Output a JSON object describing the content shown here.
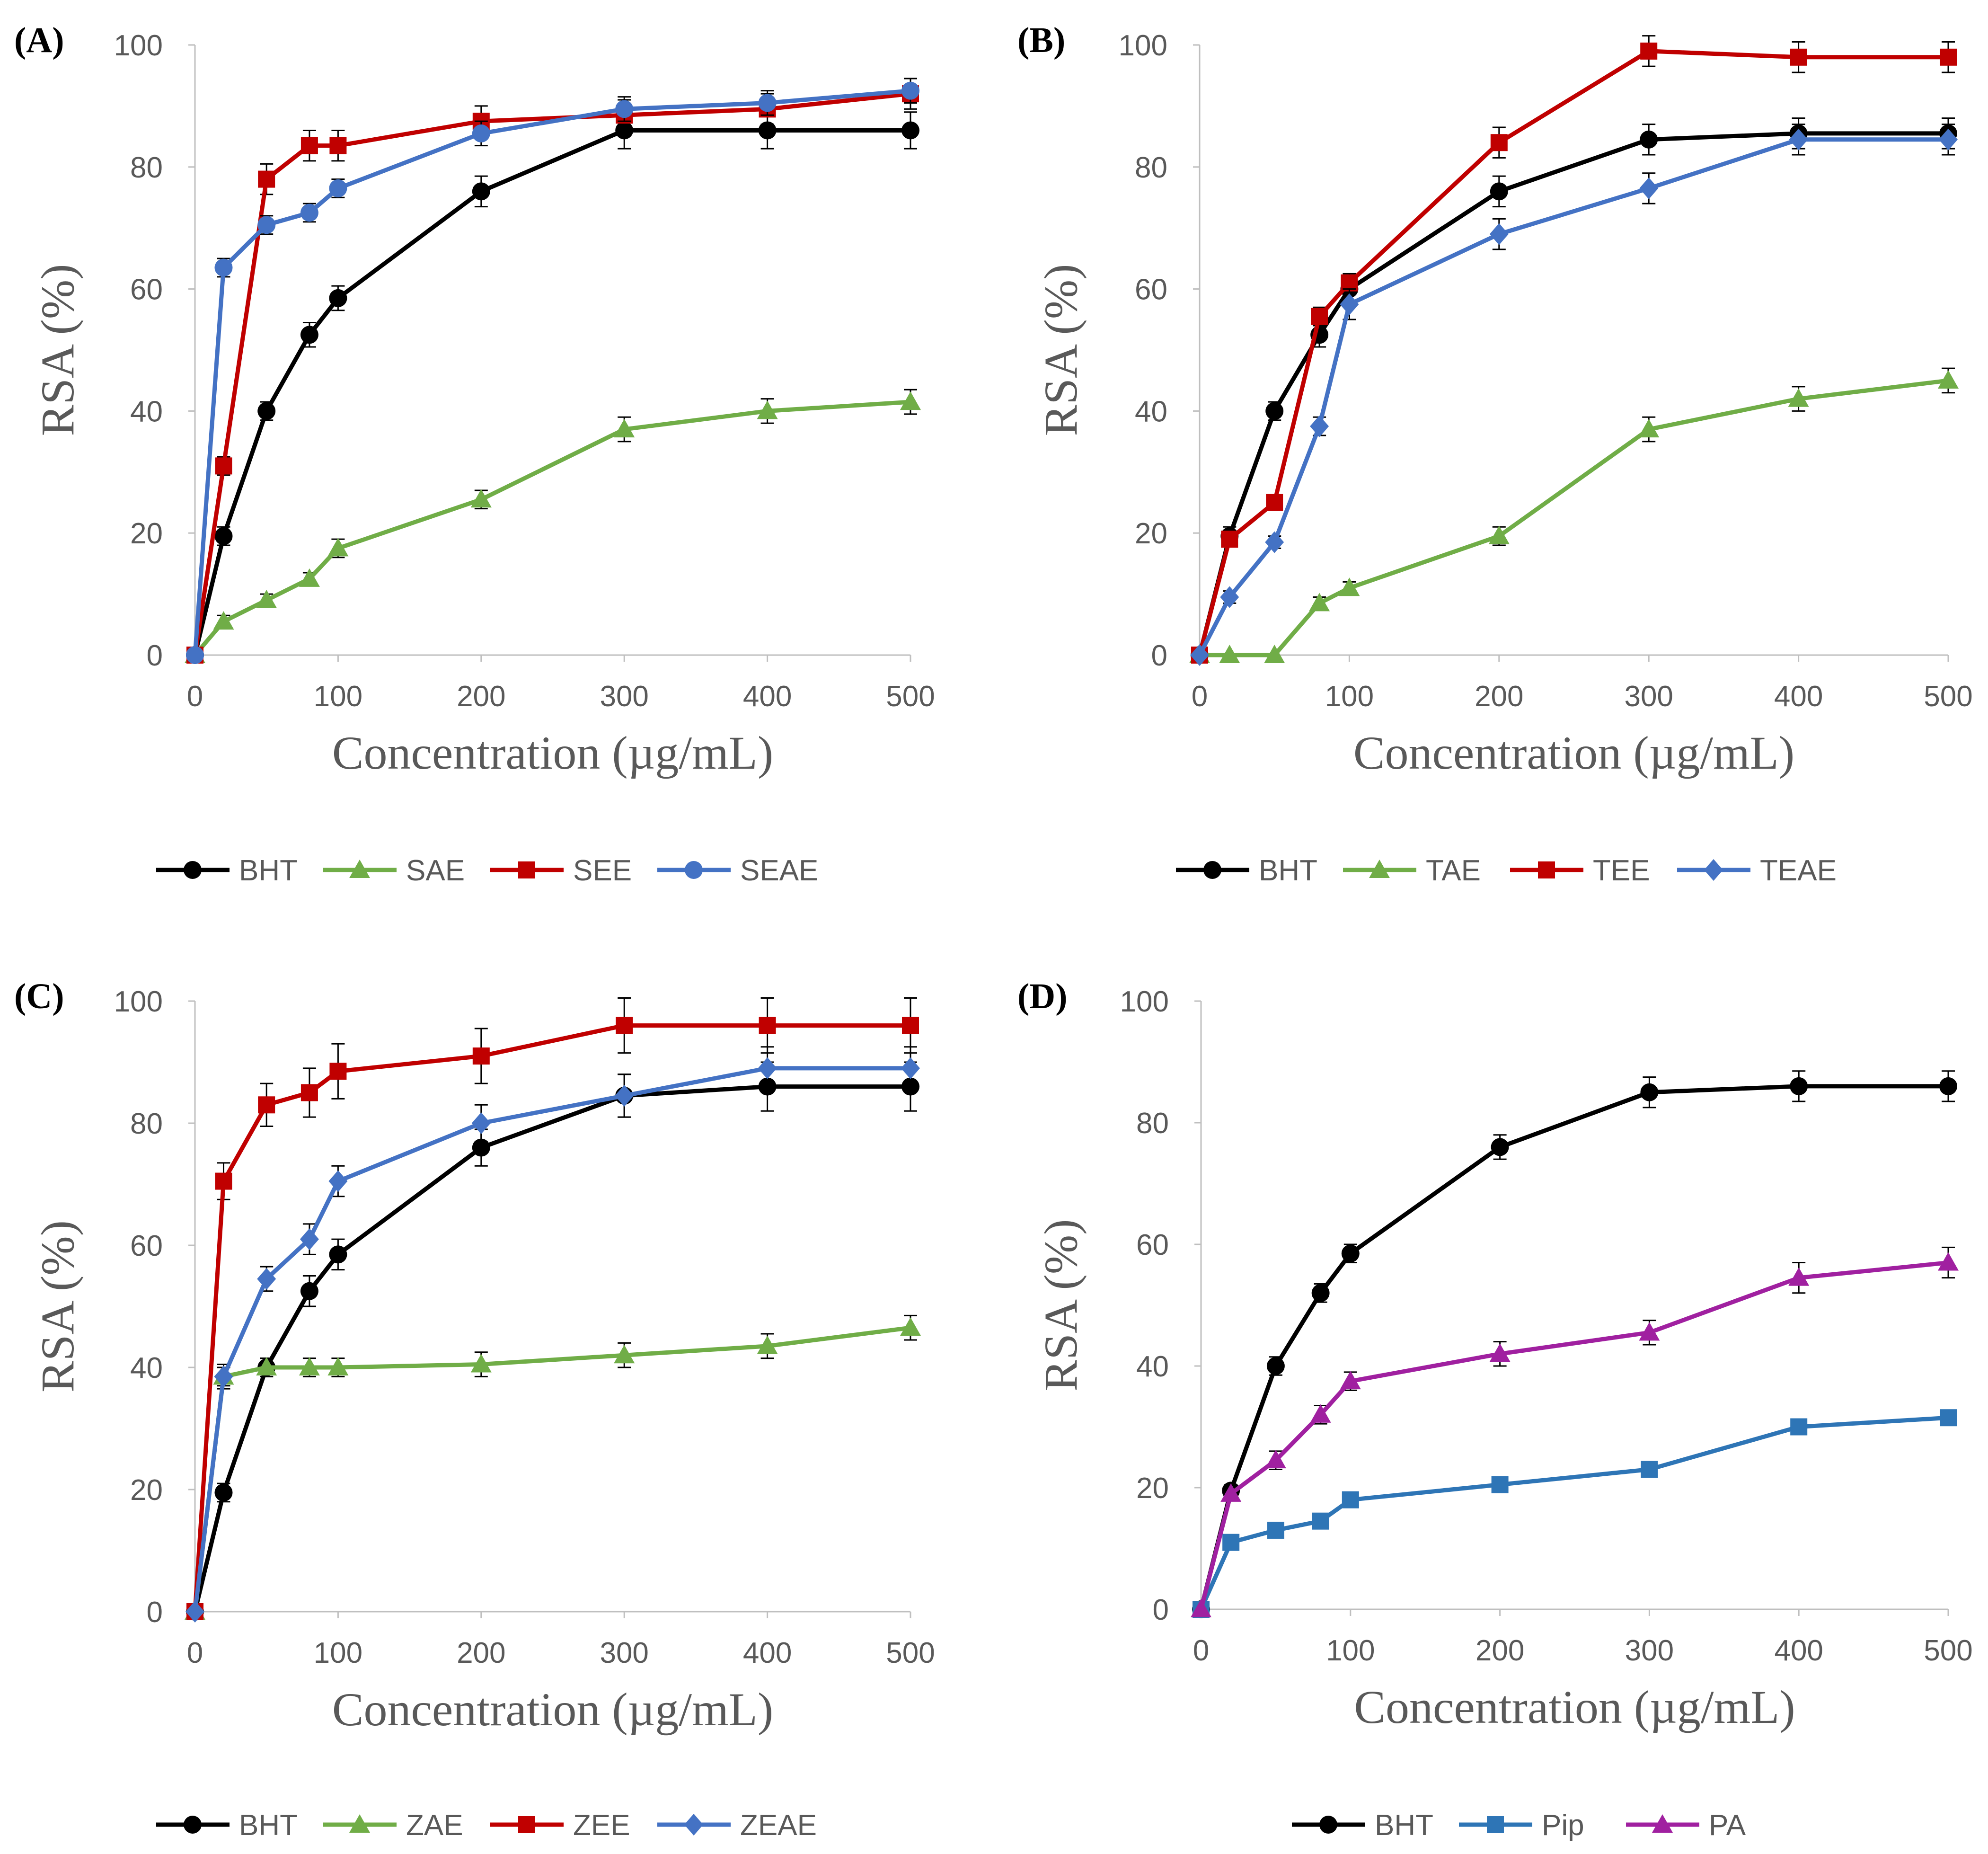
{
  "chart_data": [
    {
      "panel": "(A)",
      "type": "line",
      "xlabel": "Concentration (µg/mL)",
      "ylabel": "RSA (%)",
      "ylim": [
        0,
        100
      ],
      "yticks": [
        0,
        20,
        40,
        60,
        80,
        100
      ],
      "xticks": [
        0,
        100,
        200,
        300,
        400,
        500
      ],
      "x": [
        0,
        20,
        50,
        80,
        100,
        200,
        300,
        400,
        500
      ],
      "series": [
        {
          "name": "BHT",
          "color": "#000000",
          "marker": "circle",
          "values": [
            0,
            19.5,
            40,
            52.5,
            58.5,
            76,
            86,
            86,
            86
          ],
          "errors": [
            0,
            1.5,
            1.5,
            2,
            2,
            2.5,
            3,
            3,
            3
          ]
        },
        {
          "name": "SAE",
          "color": "#70ad47",
          "marker": "triangle",
          "values": [
            0,
            5.5,
            9,
            12.5,
            17.5,
            25.5,
            37,
            40,
            41.5
          ],
          "errors": [
            0,
            1,
            1,
            1,
            1.5,
            1.5,
            2,
            2,
            2
          ]
        },
        {
          "name": "SEE",
          "color": "#c00000",
          "marker": "square",
          "values": [
            0,
            31,
            78,
            83.5,
            83.5,
            87.5,
            88.5,
            89.5,
            92
          ],
          "errors": [
            0,
            1.5,
            2.5,
            2.5,
            2.5,
            2.5,
            2.5,
            2.5,
            2.5
          ]
        },
        {
          "name": "SEAE",
          "color": "#4472c4",
          "marker": "circle",
          "values": [
            0,
            63.5,
            70.5,
            72.5,
            76.5,
            85.5,
            89.5,
            90.5,
            92.5
          ],
          "errors": [
            0,
            1.5,
            1.5,
            1.5,
            1.5,
            2,
            2,
            2,
            2
          ]
        }
      ]
    },
    {
      "panel": "(B)",
      "type": "line",
      "xlabel": "Concentration (µg/mL)",
      "ylabel": "RSA (%)",
      "ylim": [
        0,
        100
      ],
      "yticks": [
        0,
        20,
        40,
        60,
        80,
        100
      ],
      "xticks": [
        0,
        100,
        200,
        300,
        400,
        500
      ],
      "x": [
        0,
        20,
        50,
        80,
        100,
        200,
        300,
        400,
        500
      ],
      "series": [
        {
          "name": "BHT",
          "color": "#000000",
          "marker": "circle",
          "values": [
            0,
            19.5,
            40,
            52.5,
            60,
            76,
            84.5,
            85.5,
            85.5
          ],
          "errors": [
            0,
            1.5,
            1.5,
            2,
            2,
            2.5,
            2.5,
            2.5,
            2.5
          ]
        },
        {
          "name": "TAE",
          "color": "#70ad47",
          "marker": "triangle",
          "values": [
            0,
            0,
            0,
            8.5,
            11,
            19.5,
            37,
            42,
            45
          ],
          "errors": [
            0,
            0,
            0,
            1,
            1,
            1.5,
            2,
            2,
            2
          ]
        },
        {
          "name": "TEE",
          "color": "#c00000",
          "marker": "square",
          "values": [
            0,
            19,
            25,
            55.5,
            61,
            84,
            99,
            98,
            98
          ],
          "errors": [
            0,
            1,
            1,
            1.5,
            1.5,
            2.5,
            2.5,
            2.5,
            2.5
          ]
        },
        {
          "name": "TEAE",
          "color": "#4472c4",
          "marker": "diamond",
          "values": [
            0,
            9.5,
            18.5,
            37.5,
            57.5,
            69,
            76.5,
            84.5,
            84.5
          ],
          "errors": [
            0,
            1,
            1,
            1.5,
            2.5,
            2.5,
            2.5,
            2.5,
            2.5
          ]
        }
      ]
    },
    {
      "panel": "(C)",
      "type": "line",
      "xlabel": "Concentration (µg/mL)",
      "ylabel": "RSA (%)",
      "ylim": [
        0,
        100
      ],
      "yticks": [
        0,
        20,
        40,
        60,
        80,
        100
      ],
      "xticks": [
        0,
        100,
        200,
        300,
        400,
        500
      ],
      "x": [
        0,
        20,
        50,
        80,
        100,
        200,
        300,
        400,
        500
      ],
      "series": [
        {
          "name": "BHT",
          "color": "#000000",
          "marker": "circle",
          "values": [
            0,
            19.5,
            40,
            52.5,
            58.5,
            76,
            84.5,
            86,
            86
          ],
          "errors": [
            0,
            1.5,
            1.5,
            2.5,
            2.5,
            3,
            3.5,
            4,
            4
          ]
        },
        {
          "name": "ZAE",
          "color": "#70ad47",
          "marker": "triangle",
          "values": [
            0,
            38.5,
            40,
            40,
            40,
            40.5,
            42,
            43.5,
            46.5
          ],
          "errors": [
            0,
            1.5,
            1.5,
            1.5,
            1.5,
            2,
            2,
            2,
            2
          ]
        },
        {
          "name": "ZEE",
          "color": "#c00000",
          "marker": "square",
          "values": [
            0,
            70.5,
            83,
            85,
            88.5,
            91,
            96,
            96,
            96
          ],
          "errors": [
            0,
            3,
            3.5,
            4,
            4.5,
            4.5,
            4.5,
            4.5,
            4.5
          ]
        },
        {
          "name": "ZEAE",
          "color": "#4472c4",
          "marker": "diamond",
          "values": [
            0,
            38.5,
            54.5,
            61,
            70.5,
            80,
            84.5,
            89,
            89
          ],
          "errors": [
            0,
            2,
            2,
            2.5,
            2.5,
            3,
            3.5,
            3.5,
            3.5
          ]
        }
      ]
    },
    {
      "panel": "(D)",
      "type": "line",
      "xlabel": "Concentration (µg/mL)",
      "ylabel": "RSA (%)",
      "ylim": [
        0,
        100
      ],
      "yticks": [
        0,
        20,
        40,
        60,
        80,
        100
      ],
      "xticks": [
        0,
        100,
        200,
        300,
        400,
        500
      ],
      "x": [
        0,
        20,
        50,
        80,
        100,
        200,
        300,
        400,
        500
      ],
      "series": [
        {
          "name": "BHT",
          "color": "#000000",
          "marker": "circle",
          "values": [
            0,
            19.5,
            40,
            52,
            58.5,
            76,
            85,
            86,
            86
          ],
          "errors": [
            0,
            1,
            1.5,
            1.5,
            1.5,
            2,
            2.5,
            2.5,
            2.5
          ]
        },
        {
          "name": "Pip",
          "color": "#2e75b6",
          "marker": "square",
          "values": [
            0,
            11,
            13,
            14.5,
            18,
            20.5,
            23,
            30,
            31.5
          ],
          "errors": [
            0,
            0.8,
            0.8,
            0.8,
            1,
            1,
            1,
            1,
            1
          ]
        },
        {
          "name": "PA",
          "color": "#a020a0",
          "marker": "triangle",
          "values": [
            0,
            19,
            24.5,
            32,
            37.5,
            42,
            45.5,
            54.5,
            57
          ],
          "errors": [
            0,
            1,
            1.5,
            1.5,
            1.5,
            2,
            2,
            2.5,
            2.5
          ]
        }
      ]
    }
  ]
}
